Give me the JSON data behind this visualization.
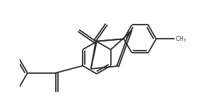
{
  "bg_color": "#ffffff",
  "line_color": "#2a2a2a",
  "line_width": 1.3,
  "figsize": [
    3.1,
    1.55
  ],
  "dpi": 100
}
